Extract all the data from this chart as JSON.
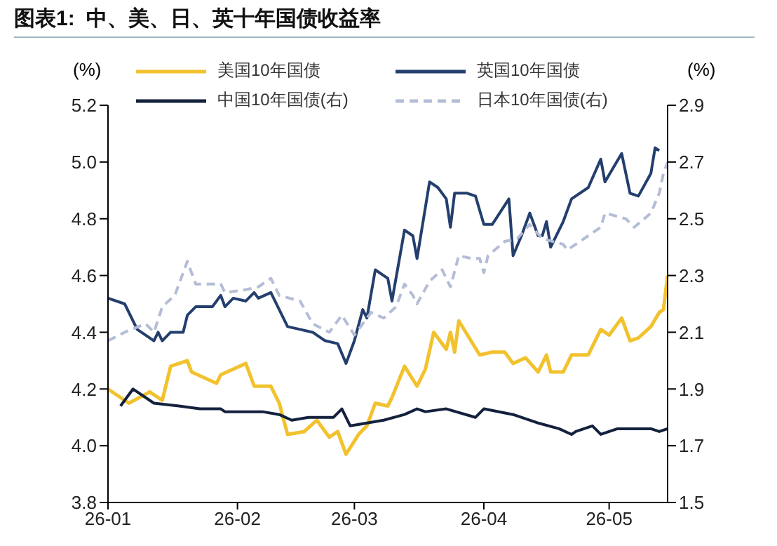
{
  "chart_data": {
    "type": "line",
    "title": "图表1:  中、美、日、英十年国债收益率",
    "ylabel": "(%)",
    "y2label": "(%)",
    "xlim": [
      "--01-01",
      "--05-15"
    ],
    "xticks": [
      {
        "value": "--01-01",
        "label": "26-01"
      },
      {
        "value": "--02-01",
        "label": "26-02"
      },
      {
        "value": "--03-01",
        "label": "26-03"
      },
      {
        "value": "--04-01",
        "label": "26-04"
      },
      {
        "value": "--05-01",
        "label": "26-05"
      }
    ],
    "ylim": [
      3.8,
      5.2
    ],
    "yticks": [
      3.8,
      {
        "value": 4,
        "label": "4.0"
      },
      4.2,
      4.4,
      4.6,
      4.8,
      {
        "value": 5,
        "label": "5.0"
      },
      5.2
    ],
    "y2lim": [
      1.5,
      2.9
    ],
    "y2ticks": [
      1.5,
      1.7,
      1.9,
      2.1,
      2.3,
      2.5,
      2.7,
      2.9
    ],
    "legend": "top",
    "grid": false,
    "marker": "none",
    "series": [
      {
        "name": "美国10年国债",
        "color": "#f2c22e",
        "line_style": "solid",
        "x": [
          "--01-01",
          "--01-06",
          "--01-11",
          "--01-14",
          "--01-16",
          "--01-20",
          "--01-21",
          "--01-27",
          "--01-28",
          "--01-31",
          "--02-03",
          "--02-05",
          "--02-09",
          "--02-11",
          "--02-13",
          "--02-17",
          "--02-20",
          "--02-23",
          "--02-25",
          "--02-27",
          "--03-02",
          "--03-04",
          "--03-06",
          "--03-09",
          "--03-10",
          "--03-13",
          "--03-16",
          "--03-18",
          "--03-20",
          "--03-23",
          "--03-24",
          "--03-25",
          "--03-26",
          "--03-31",
          "--04-03",
          "--04-06",
          "--04-08",
          "--04-11",
          "--04-14",
          "--04-16",
          "--04-17",
          "--04-20",
          "--04-22",
          "--04-26",
          "--04-29",
          "--05-01",
          "--05-04",
          "--05-06",
          "--05-08",
          "--05-11",
          "--05-13",
          "--05-14",
          "--05-15"
        ],
        "values": [
          4.2,
          4.15,
          4.19,
          4.16,
          4.28,
          4.3,
          4.26,
          4.22,
          4.25,
          4.27,
          4.29,
          4.21,
          4.21,
          4.15,
          4.04,
          4.05,
          4.09,
          4.03,
          4.05,
          3.97,
          4.04,
          4.07,
          4.15,
          4.14,
          4.17,
          4.28,
          4.21,
          4.27,
          4.4,
          4.34,
          4.4,
          4.33,
          4.44,
          4.32,
          4.33,
          4.33,
          4.29,
          4.31,
          4.26,
          4.32,
          4.26,
          4.26,
          4.32,
          4.32,
          4.41,
          4.39,
          4.45,
          4.37,
          4.38,
          4.42,
          4.47,
          4.48,
          4.6
        ]
      },
      {
        "name": "英国10年国债",
        "color": "#243f6e",
        "line_style": "solid",
        "x": [
          "--01-01",
          "--01-05",
          "--01-08",
          "--01-12",
          "--01-13",
          "--01-14",
          "--01-16",
          "--01-19",
          "--01-20",
          "--01-22",
          "--01-26",
          "--01-28",
          "--01-29",
          "--01-31",
          "--02-03",
          "--02-05",
          "--02-06",
          "--02-09",
          "--02-13",
          "--02-16",
          "--02-19",
          "--02-22",
          "--02-25",
          "--02-27",
          "--03-01",
          "--03-03",
          "--03-04",
          "--03-06",
          "--03-09",
          "--03-10",
          "--03-13",
          "--03-15",
          "--03-16",
          "--03-19",
          "--03-21",
          "--03-23",
          "--03-24",
          "--03-25",
          "--03-28",
          "--03-30",
          "--04-01",
          "--04-03",
          "--04-07",
          "--04-08",
          "--04-10",
          "--04-12",
          "--04-14",
          "--04-15",
          "--04-16",
          "--04-17",
          "--04-20",
          "--04-22",
          "--04-26",
          "--04-29",
          "--04-30",
          "--05-04",
          "--05-06",
          "--05-08",
          "--05-11",
          "--05-12",
          "--05-13"
        ],
        "values": [
          4.52,
          4.5,
          4.41,
          4.37,
          4.4,
          4.37,
          4.4,
          4.4,
          4.46,
          4.49,
          4.49,
          4.53,
          4.49,
          4.52,
          4.51,
          4.54,
          4.52,
          4.54,
          4.42,
          4.41,
          4.4,
          4.37,
          4.36,
          4.29,
          4.37,
          4.48,
          4.45,
          4.62,
          4.59,
          4.51,
          4.76,
          4.74,
          4.66,
          4.93,
          4.91,
          4.87,
          4.77,
          4.89,
          4.89,
          4.88,
          4.78,
          4.78,
          4.87,
          4.67,
          4.74,
          4.82,
          4.74,
          4.74,
          4.79,
          4.7,
          4.79,
          4.87,
          4.91,
          5.01,
          4.93,
          5.03,
          4.89,
          4.88,
          4.96,
          5.05,
          5.04
        ]
      },
      {
        "name": "中国10年国债(右)",
        "color": "#14213d",
        "axis": "y2",
        "line_style": "solid",
        "x": [
          "--01-04",
          "--01-07",
          "--01-12",
          "--01-18",
          "--01-23",
          "--01-28",
          "--01-29",
          "--02-03",
          "--02-07",
          "--02-11",
          "--02-14",
          "--02-18",
          "--02-24",
          "--02-26",
          "--02-28",
          "--03-04",
          "--03-08",
          "--03-13",
          "--03-16",
          "--03-18",
          "--03-23",
          "--03-30",
          "--04-01",
          "--04-08",
          "--04-14",
          "--04-19",
          "--04-22",
          "--04-23",
          "--04-27",
          "--04-29",
          "--05-03",
          "--05-07",
          "--05-11",
          "--05-13",
          "--05-15"
        ],
        "values": [
          1.84,
          1.9,
          1.85,
          1.84,
          1.83,
          1.83,
          1.82,
          1.82,
          1.82,
          1.81,
          1.79,
          1.8,
          1.8,
          1.83,
          1.77,
          1.78,
          1.79,
          1.81,
          1.83,
          1.82,
          1.83,
          1.8,
          1.83,
          1.81,
          1.78,
          1.76,
          1.74,
          1.75,
          1.77,
          1.74,
          1.76,
          1.76,
          1.76,
          1.75,
          1.76
        ]
      },
      {
        "name": "日本10年国债(右)",
        "color": "#b4bdd6",
        "axis": "y2",
        "line_style": "dashed",
        "x": [
          "--01-01",
          "--01-05",
          "--01-10",
          "--01-12",
          "--01-14",
          "--01-17",
          "--01-20",
          "--01-22",
          "--01-28",
          "--01-29",
          "--02-03",
          "--02-06",
          "--02-09",
          "--02-11",
          "--02-16",
          "--02-19",
          "--02-23",
          "--02-26",
          "--03-01",
          "--03-03",
          "--03-05",
          "--03-08",
          "--03-11",
          "--03-13",
          "--03-15",
          "--03-16",
          "--03-19",
          "--03-22",
          "--03-24",
          "--03-26",
          "--03-29",
          "--03-31",
          "--04-01",
          "--04-02",
          "--04-06",
          "--04-09",
          "--04-12",
          "--04-15",
          "--04-20",
          "--04-21",
          "--04-26",
          "--04-29",
          "--04-30",
          "--05-05",
          "--05-07",
          "--05-11",
          "--05-13",
          "--05-14",
          "--05-15"
        ],
        "values": [
          2.07,
          2.1,
          2.13,
          2.1,
          2.19,
          2.23,
          2.35,
          2.27,
          2.27,
          2.24,
          2.25,
          2.26,
          2.29,
          2.23,
          2.21,
          2.13,
          2.1,
          2.16,
          2.09,
          2.13,
          2.17,
          2.15,
          2.19,
          2.27,
          2.23,
          2.2,
          2.28,
          2.32,
          2.26,
          2.37,
          2.36,
          2.36,
          2.31,
          2.37,
          2.42,
          2.43,
          2.48,
          2.43,
          2.41,
          2.39,
          2.44,
          2.47,
          2.52,
          2.5,
          2.47,
          2.52,
          2.59,
          2.66,
          2.7
        ]
      }
    ]
  }
}
